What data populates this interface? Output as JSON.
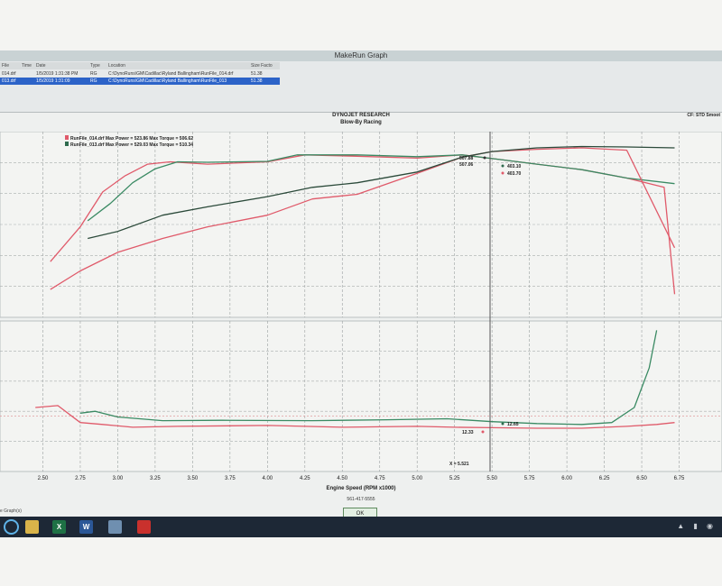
{
  "window": {
    "title": "MakeRun Graph"
  },
  "file_list": {
    "headers": [
      "File",
      "Time",
      "Date",
      "Type",
      "Location",
      "Size Facto"
    ],
    "rows": [
      {
        "file": "014.drf",
        "date": "1/5/2019 1:31:38 PM",
        "type": "RG",
        "location": "C:\\DynoRuns\\GM\\Cadillac\\Ryland Ballingham\\RunFile_014.drf",
        "size": "51.38",
        "selected": false
      },
      {
        "file": "013.drf",
        "date": "1/5/2019 1:31:09",
        "type": "RG",
        "location": "C:\\DynoRuns\\GM\\Cadillac\\Ryland Ballingham\\RunFile_013",
        "size": "51.38",
        "selected": true
      }
    ]
  },
  "plot_header": {
    "company": "DYNOJET RESEARCH",
    "subtitle": "Blow-By Racing",
    "correction": "CF: STD  Smoot"
  },
  "legend": [
    {
      "label": "RunFile_014.drf Max Power = 523.86 Max Torque = 506.62",
      "color": "#e05a6a"
    },
    {
      "label": "RunFile_013.drf Max Power = 529.03 Max Torque = 510.34",
      "color": "#2e6b4e"
    }
  ],
  "chart_data": [
    {
      "type": "line",
      "panel": "power_torque",
      "xlabel": "Engine Speed (RPM x1000)",
      "xlim": [
        2.25,
        7.0
      ],
      "x_ticks": [
        "2.50",
        "2.75",
        "3.00",
        "3.25",
        "3.50",
        "3.75",
        "4.00",
        "4.25",
        "4.50",
        "4.75",
        "5.00",
        "5.25",
        "5.50",
        "5.75",
        "6.00",
        "6.25",
        "6.50",
        "6.75"
      ],
      "series": [
        {
          "name": "RunFile_014.drf",
          "measure": "torque",
          "color": "#e05a6a",
          "x": [
            2.55,
            2.75,
            2.9,
            3.05,
            3.2,
            3.35,
            3.6,
            4.0,
            4.25,
            4.6,
            5.0,
            5.3,
            5.55,
            5.8,
            6.1,
            6.4,
            6.65,
            6.72
          ],
          "y": [
            270,
            345,
            420,
            455,
            480,
            485,
            480,
            485,
            500,
            497,
            493,
            500,
            490,
            480,
            468,
            450,
            430,
            200
          ]
        },
        {
          "name": "RunFile_013.drf",
          "measure": "torque",
          "color": "#3a8a63",
          "x": [
            2.8,
            2.95,
            3.1,
            3.25,
            3.4,
            3.6,
            4.0,
            4.2,
            4.6,
            5.0,
            5.3,
            5.55,
            5.8,
            6.1,
            6.4,
            6.72
          ],
          "y": [
            358,
            395,
            440,
            470,
            485,
            484,
            486,
            500,
            500,
            496,
            500,
            490,
            480,
            468,
            450,
            438
          ]
        },
        {
          "name": "RunFile_014.drf",
          "measure": "power",
          "color": "#e05a6a",
          "x": [
            2.55,
            2.75,
            3.0,
            3.3,
            3.6,
            4.0,
            4.3,
            4.6,
            5.0,
            5.3,
            5.5,
            5.8,
            6.1,
            6.4,
            6.72
          ],
          "y": [
            210,
            250,
            290,
            320,
            345,
            370,
            405,
            415,
            460,
            495,
            507,
            512,
            515,
            510,
            300
          ]
        },
        {
          "name": "RunFile_013.drf",
          "measure": "power",
          "color": "#2b4a3a",
          "x": [
            2.8,
            3.0,
            3.3,
            3.6,
            4.0,
            4.3,
            4.6,
            5.0,
            5.3,
            5.5,
            5.8,
            6.1,
            6.4,
            6.72
          ],
          "y": [
            320,
            335,
            370,
            388,
            410,
            430,
            440,
            463,
            495,
            507,
            515,
            518,
            517,
            515
          ]
        }
      ],
      "annotations": [
        "507.88",
        "507.06",
        "403.10",
        "403.70"
      ]
    },
    {
      "type": "line",
      "panel": "lower",
      "xlim": [
        2.25,
        7.0
      ],
      "series": [
        {
          "name": "RunFile_014.drf",
          "color": "#e05a6a",
          "x": [
            2.45,
            2.6,
            2.75,
            2.9,
            3.1,
            3.4,
            4.0,
            4.5,
            5.0,
            5.25,
            5.5,
            5.8,
            6.1,
            6.4,
            6.6,
            6.72
          ],
          "y": [
            13.4,
            13.5,
            12.6,
            12.5,
            12.35,
            12.4,
            12.45,
            12.35,
            12.4,
            12.35,
            12.33,
            12.3,
            12.3,
            12.4,
            12.5,
            12.6
          ]
        },
        {
          "name": "RunFile_013.drf",
          "color": "#3a8a63",
          "x": [
            2.75,
            2.85,
            3.0,
            3.3,
            3.7,
            4.3,
            4.8,
            5.2,
            5.5,
            5.8,
            6.1,
            6.3,
            6.45,
            6.55,
            6.6
          ],
          "y": [
            13.1,
            13.2,
            12.9,
            12.7,
            12.72,
            12.7,
            12.75,
            12.8,
            12.65,
            12.55,
            12.5,
            12.6,
            13.4,
            15.5,
            17.5
          ]
        }
      ],
      "annotations": [
        "12.65",
        "12.33"
      ]
    }
  ],
  "cursor_readout": "X = 5.521",
  "phone": "561-417-5555",
  "ok_button": {
    "label": "OK"
  },
  "status_left": "e Graph(s)",
  "taskbar": {
    "excel": "X",
    "word": "W"
  }
}
